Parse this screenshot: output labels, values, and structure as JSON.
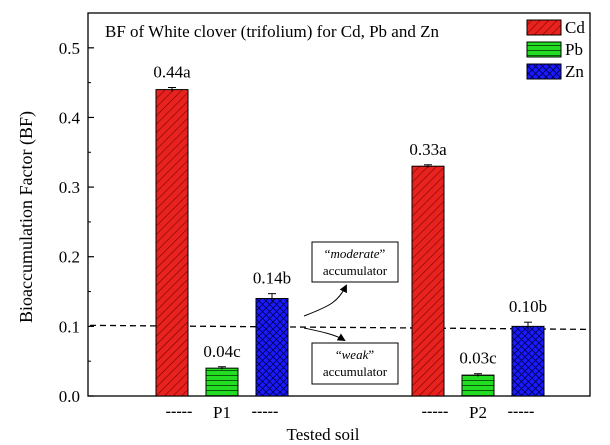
{
  "chart_data": {
    "type": "bar",
    "title": "BF of White clover (trifolium) for Cd, Pb and Zn",
    "xlabel": "Tested soil",
    "ylabel": "Bioaccumulation Factor (BF)",
    "ylim": [
      0,
      0.55
    ],
    "yticks": [
      "0.0",
      "0.1",
      "0.2",
      "0.3",
      "0.4",
      "0.5"
    ],
    "categories": [
      {
        "label": "P1",
        "dash_left": "-----",
        "dash_right": "-----"
      },
      {
        "label": "P2",
        "dash_left": "-----",
        "dash_right": "-----"
      }
    ],
    "series": [
      {
        "name": "Cd",
        "color": "#e8231f",
        "pattern": "diagonal-hatch",
        "values": [
          0.44,
          0.33
        ],
        "errors": [
          0.003,
          0.002
        ],
        "labels": [
          "0.44a",
          "0.33a"
        ]
      },
      {
        "name": "Pb",
        "color": "#22dd22",
        "pattern": "horizontal-hatch",
        "values": [
          0.04,
          0.03
        ],
        "errors": [
          0.002,
          0.002
        ],
        "labels": [
          "0.04c",
          "0.03c"
        ]
      },
      {
        "name": "Zn",
        "color": "#1a1aff",
        "pattern": "cross-hatch",
        "values": [
          0.14,
          0.1
        ],
        "errors": [
          0.007,
          0.006
        ],
        "labels": [
          "0.14b",
          "0.10b"
        ]
      }
    ],
    "threshold": {
      "value": 0.1,
      "style": "dashed"
    },
    "annotations": [
      {
        "prefix": "“",
        "emphasis": "moderate",
        "suffix": "”",
        "second_line": "accumulator"
      },
      {
        "prefix": "“",
        "emphasis": "weak",
        "suffix": "”",
        "second_line": "accumulator"
      }
    ],
    "legend_position": "top-right",
    "grid": false
  }
}
